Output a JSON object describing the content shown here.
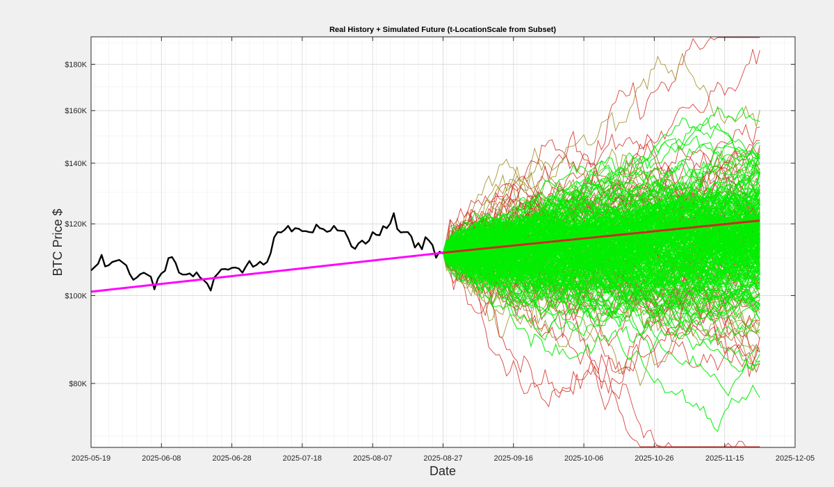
{
  "figure": {
    "background": "#f0f0f0"
  },
  "chart_data": {
    "type": "line",
    "title": "Real History + Simulated Future (t-LocationScale from Subset)",
    "xlabel": "Date",
    "ylabel": "BTC Price $",
    "yscale": "log",
    "grid": true,
    "minor_grid": true,
    "xlim": [
      "2025-05-19",
      "2025-12-05"
    ],
    "ylim": [
      68000,
      193000
    ],
    "xticks": [
      "2025-05-19",
      "2025-06-08",
      "2025-06-28",
      "2025-07-18",
      "2025-08-07",
      "2025-08-27",
      "2025-09-16",
      "2025-10-06",
      "2025-10-26",
      "2025-11-15",
      "2025-12-05"
    ],
    "yticks": [
      {
        "value": 80000,
        "label": "$80K"
      },
      {
        "value": 100000,
        "label": "$100K"
      },
      {
        "value": 120000,
        "label": "$120K"
      },
      {
        "value": 140000,
        "label": "$140K"
      },
      {
        "value": 160000,
        "label": "$160K"
      },
      {
        "value": 180000,
        "label": "$180K"
      }
    ],
    "series": [
      {
        "role": "real_history",
        "color": "#000000",
        "points": [
          [
            "2025-05-19",
            106600
          ],
          [
            "2025-05-21",
            108400
          ],
          [
            "2025-05-22",
            110900
          ],
          [
            "2025-05-23",
            107700
          ],
          [
            "2025-05-24",
            108000
          ],
          [
            "2025-05-25",
            108900
          ],
          [
            "2025-05-27",
            109500
          ],
          [
            "2025-05-29",
            108000
          ],
          [
            "2025-05-30",
            105600
          ],
          [
            "2025-05-31",
            104100
          ],
          [
            "2025-06-01",
            104700
          ],
          [
            "2025-06-02",
            105600
          ],
          [
            "2025-06-03",
            106000
          ],
          [
            "2025-06-05",
            104900
          ],
          [
            "2025-06-06",
            101600
          ],
          [
            "2025-06-07",
            104400
          ],
          [
            "2025-06-08",
            105800
          ],
          [
            "2025-06-09",
            106500
          ],
          [
            "2025-06-10",
            110000
          ],
          [
            "2025-06-11",
            110300
          ],
          [
            "2025-06-12",
            108700
          ],
          [
            "2025-06-13",
            106000
          ],
          [
            "2025-06-14",
            105500
          ],
          [
            "2025-06-15",
            105500
          ],
          [
            "2025-06-16",
            105800
          ],
          [
            "2025-06-17",
            105000
          ],
          [
            "2025-06-18",
            106100
          ],
          [
            "2025-06-19",
            104700
          ],
          [
            "2025-06-20",
            104000
          ],
          [
            "2025-06-21",
            103100
          ],
          [
            "2025-06-22",
            101300
          ],
          [
            "2025-06-23",
            104700
          ],
          [
            "2025-06-24",
            105700
          ],
          [
            "2025-06-25",
            106900
          ],
          [
            "2025-06-26",
            107000
          ],
          [
            "2025-06-27",
            106800
          ],
          [
            "2025-06-28",
            107300
          ],
          [
            "2025-06-29",
            107400
          ],
          [
            "2025-06-30",
            107100
          ],
          [
            "2025-07-01",
            106000
          ],
          [
            "2025-07-02",
            107700
          ],
          [
            "2025-07-03",
            109200
          ],
          [
            "2025-07-04",
            107600
          ],
          [
            "2025-07-05",
            108100
          ],
          [
            "2025-07-06",
            109000
          ],
          [
            "2025-07-07",
            108200
          ],
          [
            "2025-07-08",
            108900
          ],
          [
            "2025-07-09",
            111300
          ],
          [
            "2025-07-10",
            115900
          ],
          [
            "2025-07-11",
            117500
          ],
          [
            "2025-07-12",
            117400
          ],
          [
            "2025-07-13",
            118200
          ],
          [
            "2025-07-14",
            119400
          ],
          [
            "2025-07-15",
            117700
          ],
          [
            "2025-07-16",
            118700
          ],
          [
            "2025-07-17",
            118500
          ],
          [
            "2025-07-18",
            117800
          ],
          [
            "2025-07-19",
            117800
          ],
          [
            "2025-07-20",
            117500
          ],
          [
            "2025-07-21",
            117400
          ],
          [
            "2025-07-22",
            119800
          ],
          [
            "2025-07-23",
            118700
          ],
          [
            "2025-07-24",
            118400
          ],
          [
            "2025-07-25",
            117600
          ],
          [
            "2025-07-26",
            117900
          ],
          [
            "2025-07-27",
            119400
          ],
          [
            "2025-07-28",
            118000
          ],
          [
            "2025-07-29",
            117900
          ],
          [
            "2025-07-30",
            117800
          ],
          [
            "2025-07-31",
            115800
          ],
          [
            "2025-08-01",
            113300
          ],
          [
            "2025-08-02",
            112600
          ],
          [
            "2025-08-03",
            114200
          ],
          [
            "2025-08-04",
            115000
          ],
          [
            "2025-08-05",
            114100
          ],
          [
            "2025-08-06",
            115000
          ],
          [
            "2025-08-07",
            117500
          ],
          [
            "2025-08-08",
            116700
          ],
          [
            "2025-08-09",
            116600
          ],
          [
            "2025-08-10",
            119300
          ],
          [
            "2025-08-11",
            118700
          ],
          [
            "2025-08-12",
            120100
          ],
          [
            "2025-08-13",
            123300
          ],
          [
            "2025-08-14",
            118400
          ],
          [
            "2025-08-15",
            117400
          ],
          [
            "2025-08-16",
            117500
          ],
          [
            "2025-08-17",
            117500
          ],
          [
            "2025-08-18",
            116200
          ],
          [
            "2025-08-19",
            113000
          ],
          [
            "2025-08-20",
            114300
          ],
          [
            "2025-08-21",
            112500
          ],
          [
            "2025-08-22",
            116000
          ],
          [
            "2025-08-23",
            115000
          ],
          [
            "2025-08-24",
            113700
          ],
          [
            "2025-08-25",
            110100
          ],
          [
            "2025-08-26",
            111800
          ],
          [
            "2025-08-27",
            111300
          ]
        ]
      },
      {
        "role": "trend_fit",
        "color": "#ff00ff",
        "points": [
          [
            "2025-05-19",
            101000
          ],
          [
            "2025-08-27",
            111500
          ]
        ]
      },
      {
        "role": "simulation_median",
        "color": "#cc2b1f",
        "points": [
          [
            "2025-08-27",
            111500
          ],
          [
            "2025-11-25",
            121000
          ]
        ]
      }
    ],
    "simulation": {
      "start": "2025-08-27",
      "end": "2025-11-25",
      "start_value": 111500,
      "end_median": 121000,
      "end_range_approx": [
        74000,
        193000
      ],
      "band_color": "#00ee00",
      "tail_colors": [
        "#d22f27",
        "#9a8a22"
      ]
    }
  }
}
